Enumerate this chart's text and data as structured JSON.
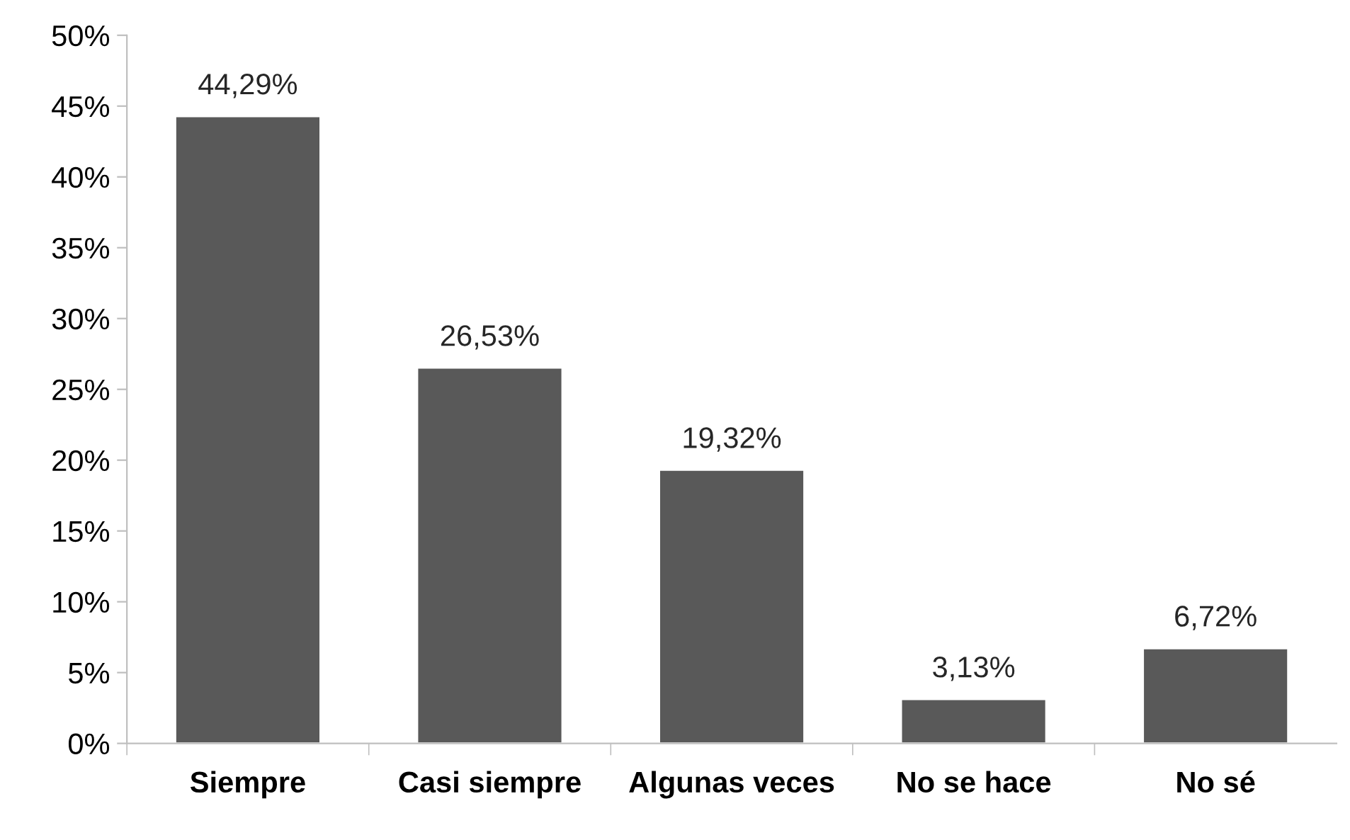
{
  "chart_data": {
    "type": "bar",
    "categories": [
      "Siempre",
      "Casi siempre",
      "Algunas veces",
      "No se hace",
      "No sé"
    ],
    "values": [
      44.29,
      26.53,
      19.32,
      3.13,
      6.72
    ],
    "value_labels": [
      "44,29%",
      "26,53%",
      "19,32%",
      "3,13%",
      "6,72%"
    ],
    "color": "#595959",
    "ylim": [
      0,
      50
    ],
    "yticks": [
      {
        "value": 0,
        "label": "0%"
      },
      {
        "value": 5,
        "label": "5%"
      },
      {
        "value": 10,
        "label": "10%"
      },
      {
        "value": 15,
        "label": "15%"
      },
      {
        "value": 20,
        "label": "20%"
      },
      {
        "value": 25,
        "label": "25%"
      },
      {
        "value": 30,
        "label": "30%"
      },
      {
        "value": 35,
        "label": "35%"
      },
      {
        "value": 40,
        "label": "40%"
      },
      {
        "value": 45,
        "label": "45%"
      },
      {
        "value": 50,
        "label": "50%"
      }
    ],
    "grid": false,
    "legend": false
  }
}
